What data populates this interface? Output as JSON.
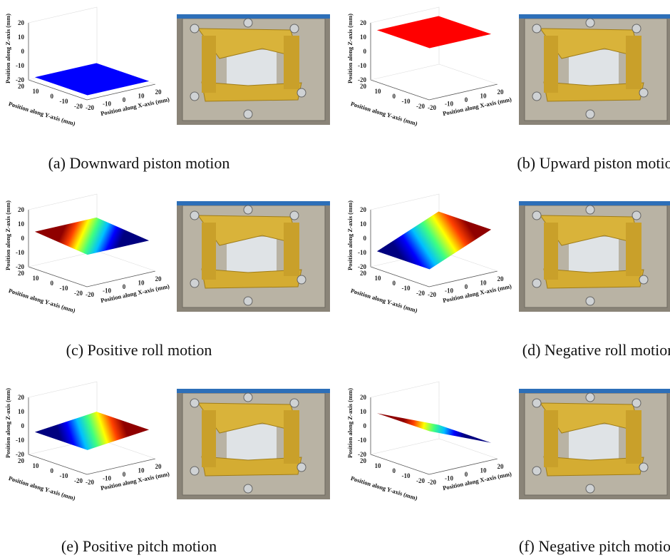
{
  "panels": [
    {
      "caption": "(a) Downward piston motion",
      "plot": {
        "z_label": "Position along Z-axis (mm)",
        "y_label": "Position along Y-axis (mm)",
        "x_label": "Position along X-axis (mm)",
        "z_ticks": [
          20,
          10,
          0,
          -10,
          -20
        ],
        "y_ticks": [
          20,
          10,
          0,
          -10,
          -20
        ],
        "x_ticks": [
          -20,
          -10,
          0,
          10,
          20
        ]
      }
    },
    {
      "caption": "(b) Upward piston motion",
      "plot": {
        "z_label": "Position along Z-axis (mm)",
        "y_label": "Position along Y-axis (mm)",
        "x_label": "Position along X-axis (mm)",
        "z_ticks": [
          20,
          10,
          0,
          -10,
          -20
        ],
        "y_ticks": [
          20,
          10,
          0,
          -10,
          -20
        ],
        "x_ticks": [
          -20,
          -10,
          0,
          10,
          20
        ]
      }
    },
    {
      "caption": "(c) Positive roll motion",
      "plot": {
        "z_label": "Position along Z-axis (mm)",
        "y_label": "Position along Y-axis (mm)",
        "x_label": "Position along X-axis (mm)",
        "z_ticks": [
          20,
          10,
          0,
          -10,
          -20
        ],
        "y_ticks": [
          20,
          10,
          0,
          -10,
          -20
        ],
        "x_ticks": [
          -20,
          -10,
          0,
          10,
          20
        ]
      }
    },
    {
      "caption": "(d) Negative roll motion",
      "plot": {
        "z_label": "Position along Z-axis (mm)",
        "y_label": "Position along Y-axis (mm)",
        "x_label": "Position along X-axis (mm)",
        "z_ticks": [
          20,
          10,
          0,
          -10,
          -20
        ],
        "y_ticks": [
          20,
          10,
          0,
          -10,
          -20
        ],
        "x_ticks": [
          -20,
          -10,
          0,
          10,
          20
        ]
      }
    },
    {
      "caption": "(e) Positive pitch motion",
      "plot": {
        "z_label": "Position along Z-axis (mm)",
        "y_label": "Position along Y-axis (mm)",
        "x_label": "Position along X-axis (mm)",
        "z_ticks": [
          20,
          10,
          0,
          -10,
          -20
        ],
        "y_ticks": [
          20,
          10,
          0,
          -10,
          -20
        ],
        "x_ticks": [
          -20,
          -10,
          0,
          10,
          20
        ]
      }
    },
    {
      "caption": "(f) Negative pitch motion",
      "plot": {
        "z_label": "Position along Z-axis (mm)",
        "y_label": "Position along Y-axis (mm)",
        "x_label": "Position along X-axis (mm)",
        "z_ticks": [
          20,
          10,
          0,
          -10,
          -20
        ],
        "y_ticks": [
          20,
          10,
          0,
          -10,
          -20
        ],
        "x_ticks": [
          -20,
          -10,
          0,
          10,
          20
        ]
      }
    }
  ]
}
